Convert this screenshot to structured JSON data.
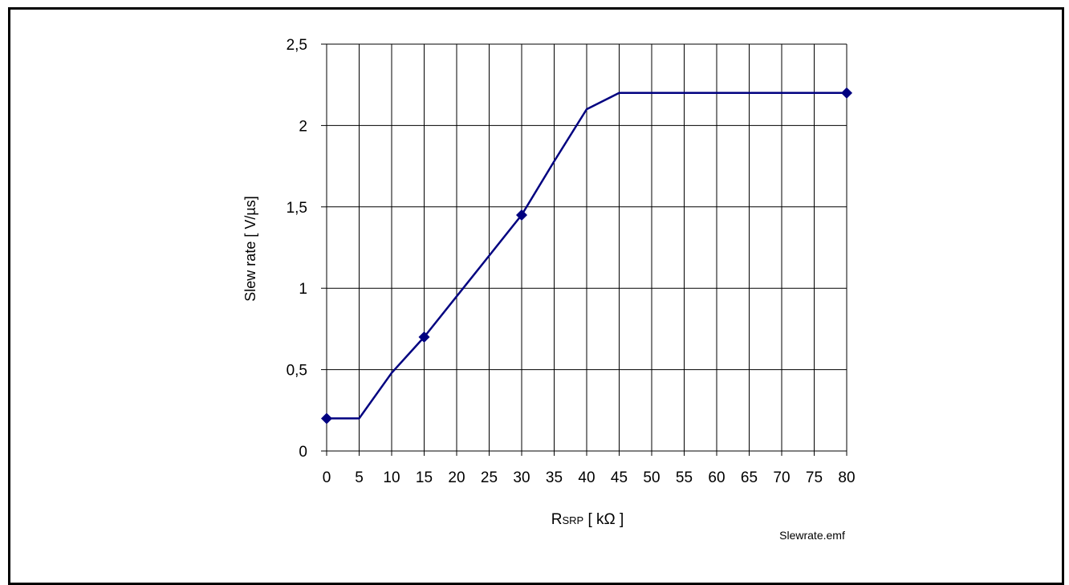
{
  "chart_data": {
    "type": "line",
    "title": "",
    "xlabel_main": "R",
    "xlabel_sub": "SRP",
    "xlabel_unit": " [ kΩ ]",
    "ylabel": "Slew rate  [ V/µs]",
    "categories": [
      "0",
      "5",
      "10",
      "15",
      "20",
      "25",
      "30",
      "35",
      "40",
      "45",
      "50",
      "55",
      "60",
      "65",
      "70",
      "75",
      "80"
    ],
    "y_ticks": [
      "0",
      "0,5",
      "1",
      "1,5",
      "2",
      "2,5"
    ],
    "ylim": [
      0,
      2.5
    ],
    "grid": true,
    "series": [
      {
        "line_points": [
          [
            0,
            0.2
          ],
          [
            5,
            0.2
          ],
          [
            10,
            0.48
          ],
          [
            15,
            0.7
          ],
          [
            20,
            0.95
          ],
          [
            25,
            1.2
          ],
          [
            30,
            1.45
          ],
          [
            35,
            1.78
          ],
          [
            40,
            2.1
          ],
          [
            45,
            2.2
          ],
          [
            50,
            2.2
          ],
          [
            55,
            2.2
          ],
          [
            60,
            2.2
          ],
          [
            65,
            2.2
          ],
          [
            70,
            2.2
          ],
          [
            75,
            2.2
          ],
          [
            80,
            2.2
          ]
        ],
        "markers": [
          [
            0,
            0.2
          ],
          [
            15,
            0.7
          ],
          [
            30,
            1.45
          ],
          [
            80,
            2.2
          ]
        ],
        "color": "#000080"
      }
    ],
    "footnote": "Slewrate.emf"
  }
}
